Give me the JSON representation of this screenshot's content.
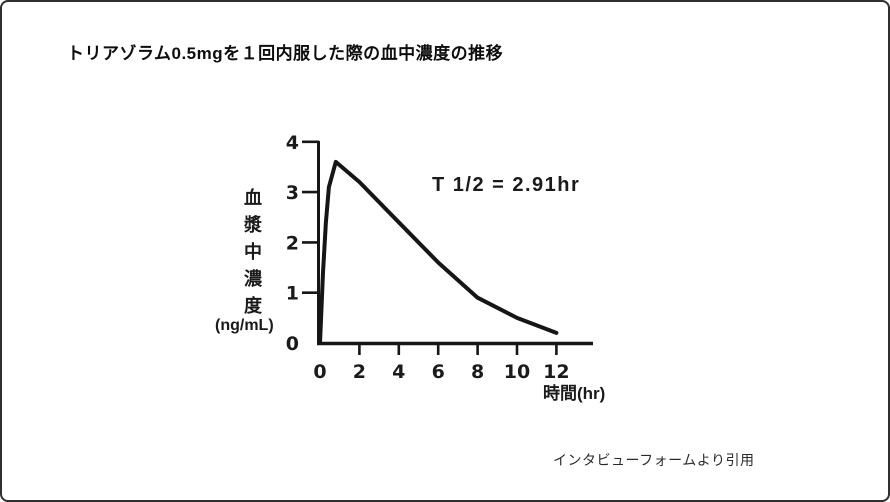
{
  "title": "トリアゾラム0.5mgを１回内服した際の血中濃度の推移",
  "citation": "インタビューフォームより引用",
  "chart_data": {
    "type": "line",
    "title": "トリアゾラム0.5mgを１回内服した際の血中濃度の推移",
    "x": [
      0,
      0.15,
      0.3,
      0.45,
      0.8,
      2,
      4,
      6,
      8,
      10,
      12
    ],
    "y": [
      0,
      1.4,
      2.4,
      3.1,
      3.6,
      3.2,
      2.4,
      1.6,
      0.9,
      0.5,
      0.2
    ],
    "peak": {
      "time_hr": 0.8,
      "value_ng_ml": 3.6
    },
    "half_life_hr": 2.91,
    "annotation": "T 1/2 = 2.91hr",
    "xlabel": "時間(hr)",
    "ylabel": "血漿中濃度",
    "ylabel_unit": "(ng/mL)",
    "xticks": [
      0,
      2,
      4,
      6,
      8,
      10,
      12
    ],
    "yticks": [
      0,
      1,
      2,
      3,
      4
    ],
    "xlim": [
      0,
      14
    ],
    "ylim": [
      0,
      4
    ],
    "grid": false,
    "legend": false,
    "line_color": "#161616"
  }
}
